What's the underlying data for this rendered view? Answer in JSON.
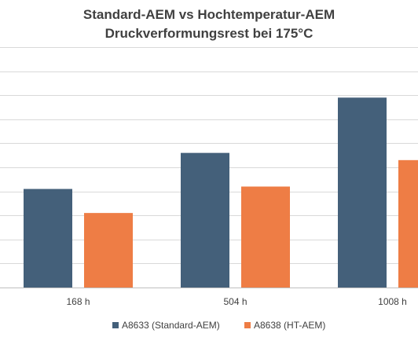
{
  "chart_data": {
    "type": "bar",
    "title": [
      "Standard-AEM vs Hochtemperatur-AEM",
      "Druckverformungsrest bei 175°C"
    ],
    "categories": [
      "168 h",
      "504 h",
      "1008 h"
    ],
    "series": [
      {
        "name": "A8633 (Standard-AEM)",
        "color": "#44607a",
        "values": [
          41,
          56,
          79
        ]
      },
      {
        "name": "A8638 (HT-AEM)",
        "color": "#ee7d45",
        "values": [
          31,
          42,
          53
        ]
      }
    ],
    "ylim": [
      0,
      100
    ],
    "grid_step": 10,
    "grid": true,
    "legend_position": "bottom"
  }
}
